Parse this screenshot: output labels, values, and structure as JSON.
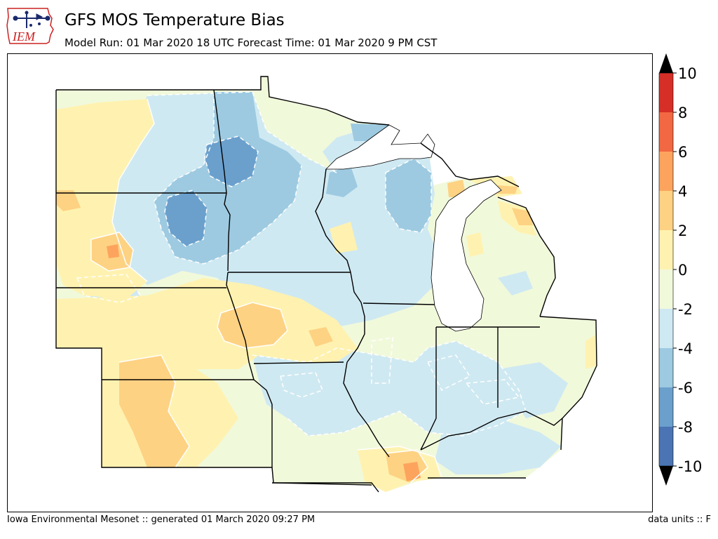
{
  "header": {
    "title": "GFS MOS Temperature Bias",
    "subtitle": "Model Run: 01 Mar 2020 18 UTC Forecast Time: 01 Mar 2020 9 PM CST"
  },
  "logo": {
    "text": "IEM",
    "colors": {
      "state": "#cc2222",
      "text": "#cc2222",
      "icon": "#1a2a6c"
    }
  },
  "footer": {
    "left": "Iowa Environmental Mesonet :: generated 01 March 2020 09:27 PM",
    "right": "data units :: F"
  },
  "colorbar": {
    "ticks": [
      "10",
      "8",
      "6",
      "4",
      "2",
      "0",
      "-2",
      "-4",
      "-6",
      "-8",
      "-10"
    ],
    "levels": [
      -10,
      -8,
      -6,
      -4,
      -2,
      0,
      2,
      4,
      6,
      8,
      10
    ],
    "colors": [
      "#4a74b4",
      "#6ba0cd",
      "#9dcae1",
      "#cfe9f2",
      "#f1f9db",
      "#fff2b0",
      "#fed283",
      "#fca45e",
      "#f26842",
      "#d62f27"
    ],
    "extend_low": "#000000",
    "extend_high": "#000000"
  },
  "map": {
    "region": "Upper Midwest",
    "land_background": "#f1f9db",
    "water_color": "#ffffff",
    "border_color": "#000000",
    "contour_line_color": "#ffffff"
  }
}
